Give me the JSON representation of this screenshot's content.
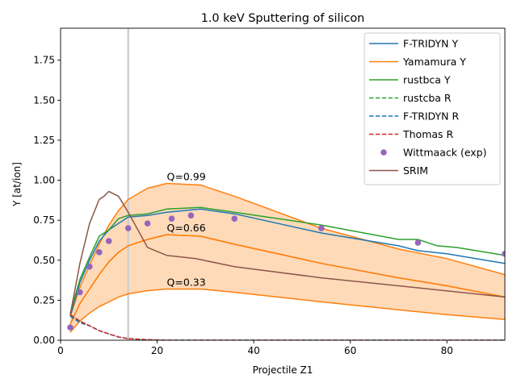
{
  "chart_data": {
    "type": "line",
    "title": "1.0 keV Sputtering of silicon",
    "xlabel": "Projectile Z1",
    "ylabel": "Y [at/ion]",
    "xlim": [
      0,
      92
    ],
    "ylim": [
      0,
      1.95
    ],
    "xticks": [
      "0",
      "20",
      "40",
      "60",
      "80"
    ],
    "yticks": [
      "0.00",
      "0.25",
      "0.50",
      "0.75",
      "1.00",
      "1.25",
      "1.50",
      "1.75"
    ],
    "grid": false,
    "legend_position": "top-right",
    "vertical_marker_x": 14,
    "q_band": {
      "color": "#ffdab9",
      "labels": [
        "Q=0.99",
        "Q=0.66",
        "Q=0.33"
      ],
      "upper": {
        "x": [
          2,
          4,
          6,
          8,
          10,
          12,
          14,
          18,
          22,
          29,
          36,
          54,
          70,
          80,
          92
        ],
        "y": [
          0.15,
          0.33,
          0.47,
          0.6,
          0.72,
          0.81,
          0.88,
          0.95,
          0.98,
          0.97,
          0.9,
          0.7,
          0.57,
          0.51,
          0.41
        ]
      },
      "middle": {
        "x": [
          2,
          4,
          6,
          8,
          10,
          12,
          14,
          18,
          22,
          29,
          36,
          54,
          70,
          80,
          92
        ],
        "y": [
          0.1,
          0.23,
          0.32,
          0.41,
          0.49,
          0.55,
          0.59,
          0.63,
          0.66,
          0.65,
          0.6,
          0.48,
          0.39,
          0.34,
          0.27
        ]
      },
      "lower": {
        "x": [
          2,
          4,
          6,
          8,
          10,
          12,
          14,
          18,
          22,
          29,
          36,
          54,
          70,
          80,
          92
        ],
        "y": [
          0.05,
          0.12,
          0.17,
          0.21,
          0.24,
          0.27,
          0.29,
          0.31,
          0.32,
          0.32,
          0.3,
          0.24,
          0.19,
          0.16,
          0.13
        ]
      }
    },
    "series": [
      {
        "name": "F-TRIDYN Y",
        "color": "#1f77b4",
        "dash": "solid",
        "x": [
          2,
          4,
          6,
          8,
          10,
          12,
          14,
          18,
          22,
          29,
          36,
          54,
          70,
          74,
          80,
          84,
          92
        ],
        "y": [
          0.15,
          0.36,
          0.5,
          0.62,
          0.69,
          0.73,
          0.77,
          0.78,
          0.8,
          0.82,
          0.79,
          0.67,
          0.59,
          0.56,
          0.54,
          0.52,
          0.48
        ]
      },
      {
        "name": "Yamamura Y",
        "color": "#ff7f0e",
        "dash": "solid",
        "x": [
          2,
          4,
          6,
          8,
          10,
          12,
          14,
          18,
          22,
          29,
          36,
          54,
          70,
          80,
          92
        ],
        "y": [
          0.1,
          0.23,
          0.32,
          0.41,
          0.49,
          0.55,
          0.59,
          0.63,
          0.66,
          0.65,
          0.6,
          0.48,
          0.39,
          0.34,
          0.27
        ]
      },
      {
        "name": "rustbca Y",
        "color": "#2ca02c",
        "dash": "solid",
        "x": [
          2,
          4,
          6,
          8,
          10,
          12,
          14,
          18,
          22,
          29,
          36,
          54,
          70,
          74,
          78,
          82,
          92
        ],
        "y": [
          0.17,
          0.38,
          0.52,
          0.65,
          0.69,
          0.76,
          0.78,
          0.79,
          0.82,
          0.83,
          0.8,
          0.72,
          0.63,
          0.63,
          0.59,
          0.58,
          0.53
        ]
      },
      {
        "name": "rustcba R",
        "color": "#2ca02c",
        "dash": "dashed",
        "x": [
          2,
          4,
          6,
          8,
          10,
          12,
          14,
          18,
          22,
          40,
          60,
          92
        ],
        "y": [
          0.15,
          0.12,
          0.09,
          0.06,
          0.04,
          0.02,
          0.01,
          0.003,
          0.0,
          0.0,
          0.0,
          0.0
        ]
      },
      {
        "name": "F-TRIDYN R",
        "color": "#1f77b4",
        "dash": "dashed",
        "x": [
          2,
          4,
          6,
          8,
          10,
          12,
          14,
          18,
          22,
          40,
          60,
          92
        ],
        "y": [
          0.15,
          0.11,
          0.09,
          0.06,
          0.04,
          0.02,
          0.01,
          0.003,
          0.0,
          0.0,
          0.0,
          0.0
        ]
      },
      {
        "name": "Thomas R",
        "color": "#d62728",
        "dash": "dashed",
        "x": [
          2,
          4,
          6,
          8,
          10,
          12,
          14,
          18,
          22,
          40,
          60,
          92
        ],
        "y": [
          0.16,
          0.12,
          0.09,
          0.06,
          0.04,
          0.02,
          0.01,
          0.003,
          0.0,
          0.0,
          0.0,
          0.0
        ]
      },
      {
        "name": "Wittmaack (exp)",
        "color": "#9467bd",
        "marker": "circle",
        "x": [
          2,
          4,
          6,
          8,
          10,
          14,
          18,
          23,
          27,
          36,
          54,
          74,
          92
        ],
        "y": [
          0.08,
          0.3,
          0.46,
          0.55,
          0.62,
          0.7,
          0.73,
          0.76,
          0.78,
          0.76,
          0.7,
          0.61,
          0.54
        ]
      },
      {
        "name": "SRIM",
        "color": "#8c564b",
        "dash": "solid",
        "x": [
          2,
          4,
          6,
          8,
          9,
          10,
          12,
          14,
          18,
          22,
          28,
          36,
          54,
          70,
          92
        ],
        "y": [
          0.16,
          0.48,
          0.73,
          0.88,
          0.9,
          0.93,
          0.9,
          0.8,
          0.58,
          0.53,
          0.51,
          0.46,
          0.39,
          0.34,
          0.27
        ]
      }
    ]
  }
}
